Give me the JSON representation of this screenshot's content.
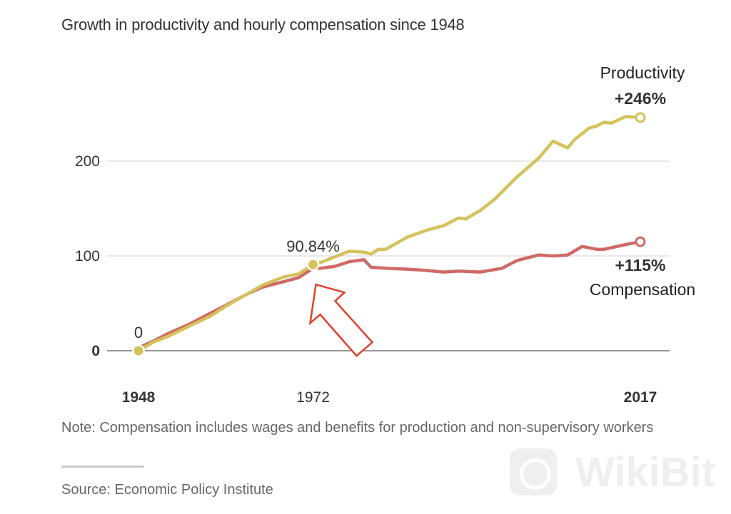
{
  "chart_data": {
    "type": "line",
    "title": "Growth in productivity and hourly compensation since 1948",
    "xlabel": "",
    "ylabel": "",
    "xlim": [
      1948,
      2017
    ],
    "ylim": [
      0,
      250
    ],
    "grid": true,
    "y_ticks": [
      {
        "value": 0,
        "label": "0",
        "bold": true
      },
      {
        "value": 100,
        "label": "100",
        "bold": false
      },
      {
        "value": 200,
        "label": "200",
        "bold": false
      }
    ],
    "x_ticks": [
      {
        "value": 1948,
        "label": "1948",
        "bold": true
      },
      {
        "value": 1972,
        "label": "1972",
        "bold": false
      },
      {
        "value": 2017,
        "label": "2017",
        "bold": true
      }
    ],
    "series": [
      {
        "name": "Productivity",
        "color": "#d4c25c",
        "end_label_name": "Productivity",
        "end_label_value": "+246%",
        "points": [
          [
            1948,
            0
          ],
          [
            1950,
            9
          ],
          [
            1952,
            15
          ],
          [
            1955,
            26
          ],
          [
            1958,
            37
          ],
          [
            1960,
            47
          ],
          [
            1963,
            60
          ],
          [
            1965,
            69
          ],
          [
            1968,
            78
          ],
          [
            1970,
            81
          ],
          [
            1972,
            90.84
          ],
          [
            1973,
            93
          ],
          [
            1975,
            99
          ],
          [
            1977,
            105
          ],
          [
            1979,
            104
          ],
          [
            1980,
            102
          ],
          [
            1981,
            107
          ],
          [
            1982,
            107
          ],
          [
            1985,
            120
          ],
          [
            1988,
            128
          ],
          [
            1990,
            132
          ],
          [
            1992,
            140
          ],
          [
            1993,
            139
          ],
          [
            1995,
            148
          ],
          [
            1997,
            160
          ],
          [
            2000,
            183
          ],
          [
            2003,
            203
          ],
          [
            2005,
            221
          ],
          [
            2007,
            214
          ],
          [
            2008,
            223
          ],
          [
            2010,
            235
          ],
          [
            2011,
            237
          ],
          [
            2012,
            241
          ],
          [
            2013,
            240
          ],
          [
            2015,
            247
          ],
          [
            2017,
            246
          ]
        ]
      },
      {
        "name": "Compensation",
        "color": "#d06a66",
        "end_label_name": "Compensation",
        "end_label_value": "+115%",
        "points": [
          [
            1948,
            3
          ],
          [
            1950,
            10
          ],
          [
            1952,
            18
          ],
          [
            1955,
            28
          ],
          [
            1958,
            40
          ],
          [
            1960,
            48
          ],
          [
            1963,
            60
          ],
          [
            1965,
            67
          ],
          [
            1968,
            73
          ],
          [
            1970,
            77
          ],
          [
            1972,
            87
          ],
          [
            1973,
            87
          ],
          [
            1975,
            89
          ],
          [
            1977,
            94
          ],
          [
            1979,
            96
          ],
          [
            1980,
            88
          ],
          [
            1982,
            87
          ],
          [
            1985,
            86
          ],
          [
            1987,
            85
          ],
          [
            1990,
            83
          ],
          [
            1992,
            84
          ],
          [
            1995,
            83
          ],
          [
            1998,
            87
          ],
          [
            2000,
            95
          ],
          [
            2003,
            101
          ],
          [
            2005,
            100
          ],
          [
            2007,
            101
          ],
          [
            2009,
            110
          ],
          [
            2011,
            107
          ],
          [
            2012,
            107
          ],
          [
            2015,
            112
          ],
          [
            2017,
            115
          ]
        ]
      }
    ],
    "annotations": [
      {
        "x": 1948,
        "y": 0,
        "label": "0"
      },
      {
        "x": 1972,
        "y": 90.84,
        "label": "90.84%"
      }
    ],
    "arrow": {
      "points_to": [
        1972,
        90.84
      ],
      "color": "#e0402c"
    },
    "note": "Note: Compensation includes wages and benefits for production and non-supervisory workers",
    "source": "Source: Economic Policy Institute"
  },
  "watermark": "WikiBit"
}
